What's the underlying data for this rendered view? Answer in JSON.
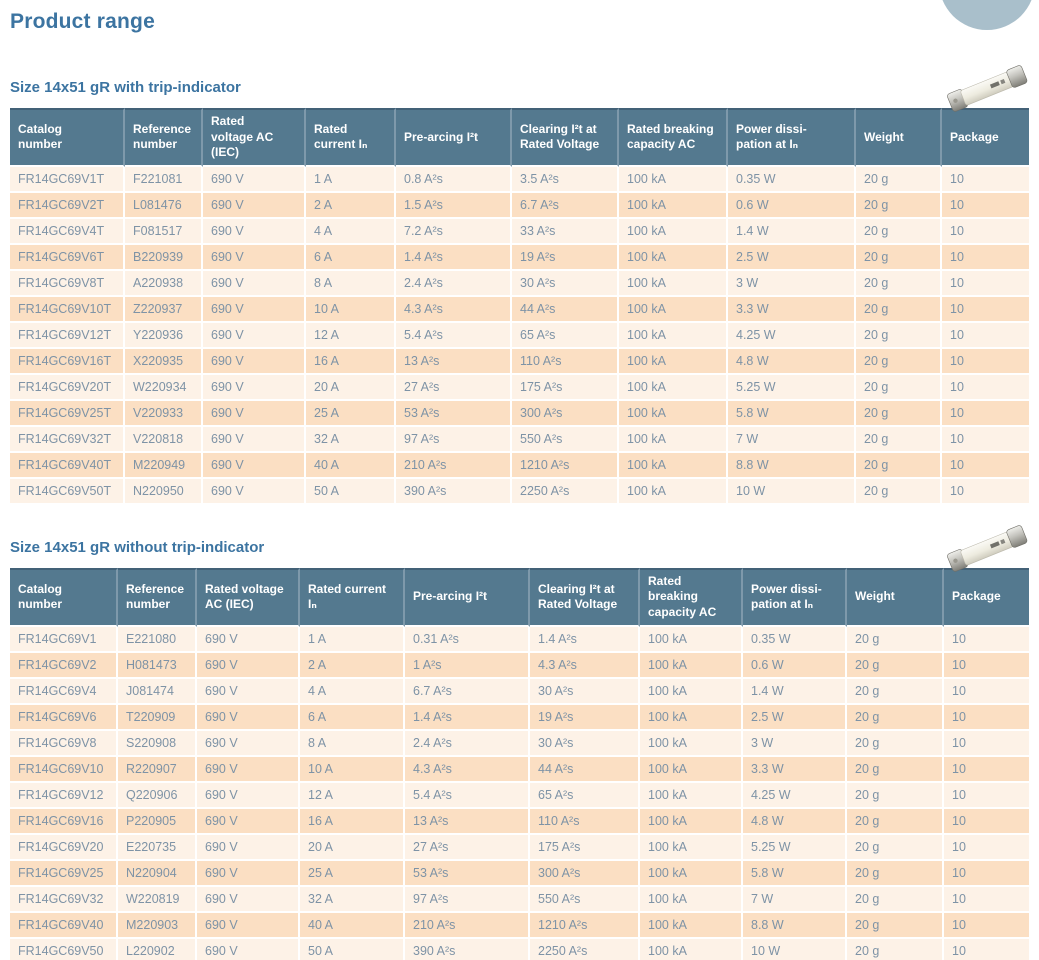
{
  "page": {
    "title": "Product range"
  },
  "colors": {
    "header_bg": "#54798f",
    "header_text": "#ffffff",
    "header_sep": "#7e99ab",
    "header_top": "#436177",
    "row_light": "#fdf2e7",
    "row_peach": "#fbdfc3",
    "cell_text": "#7e93a6",
    "title_blue": "#3c74a1",
    "circle": "#a9bfcb"
  },
  "images": {
    "fuse_photo": "ceramic-cartridge-fuse-photo",
    "corner_circle": "decorative-light-blue-circle"
  },
  "tables": [
    {
      "title": "Size 14x51 gR with trip-indicator",
      "headers": [
        "Catalog\nnumber",
        "Reference\nnumber",
        "Rated\nvoltage AC\n(IEC)",
        "Rated\ncurrent Iₙ",
        "Pre-arcing I²t",
        "Clearing I²t at\nRated Voltage",
        "Rated breaking\ncapacity AC",
        "Power dissi-\npation at Iₙ",
        "Weight",
        "Package"
      ],
      "rows": [
        [
          "FR14GC69V1T",
          "F221081",
          "690 V",
          "1 A",
          "0.8 A²s",
          "3.5 A²s",
          "100 kA",
          "0.35 W",
          "20 g",
          "10"
        ],
        [
          "FR14GC69V2T",
          "L081476",
          "690 V",
          "2 A",
          "1.5 A²s",
          "6.7 A²s",
          "100 kA",
          "0.6 W",
          "20 g",
          "10"
        ],
        [
          "FR14GC69V4T",
          "F081517",
          "690 V",
          "4 A",
          "7.2 A²s",
          "33 A²s",
          "100 kA",
          "1.4 W",
          "20 g",
          "10"
        ],
        [
          "FR14GC69V6T",
          "B220939",
          "690 V",
          "6 A",
          "1.4 A²s",
          "19 A²s",
          "100 kA",
          "2.5 W",
          "20 g",
          "10"
        ],
        [
          "FR14GC69V8T",
          "A220938",
          "690 V",
          "8 A",
          "2.4 A²s",
          "30 A²s",
          "100 kA",
          "3 W",
          "20 g",
          "10"
        ],
        [
          "FR14GC69V10T",
          "Z220937",
          "690 V",
          "10 A",
          "4.3 A²s",
          "44 A²s",
          "100 kA",
          "3.3 W",
          "20 g",
          "10"
        ],
        [
          "FR14GC69V12T",
          "Y220936",
          "690 V",
          "12 A",
          "5.4 A²s",
          "65 A²s",
          "100 kA",
          "4.25 W",
          "20 g",
          "10"
        ],
        [
          "FR14GC69V16T",
          "X220935",
          "690 V",
          "16 A",
          "13 A²s",
          "110 A²s",
          "100 kA",
          "4.8 W",
          "20 g",
          "10"
        ],
        [
          "FR14GC69V20T",
          "W220934",
          "690 V",
          "20 A",
          "27 A²s",
          "175 A²s",
          "100 kA",
          "5.25 W",
          "20 g",
          "10"
        ],
        [
          "FR14GC69V25T",
          "V220933",
          "690 V",
          "25 A",
          "53 A²s",
          "300 A²s",
          "100 kA",
          "5.8 W",
          "20 g",
          "10"
        ],
        [
          "FR14GC69V32T",
          "V220818",
          "690 V",
          "32 A",
          "97 A²s",
          "550 A²s",
          "100 kA",
          "7 W",
          "20 g",
          "10"
        ],
        [
          "FR14GC69V40T",
          "M220949",
          "690 V",
          "40 A",
          "210 A²s",
          "1210 A²s",
          "100 kA",
          "8.8 W",
          "20 g",
          "10"
        ],
        [
          "FR14GC69V50T",
          "N220950",
          "690 V",
          "50 A",
          "390 A²s",
          "2250 A²s",
          "100 kA",
          "10 W",
          "20 g",
          "10"
        ]
      ]
    },
    {
      "title": "Size 14x51 gR without trip-indicator",
      "headers": [
        "Catalog\nnumber",
        "Reference\nnumber",
        "Rated voltage\nAC (IEC)",
        "Rated current\nIₙ",
        "Pre-arcing I²t",
        "Clearing I²t at\nRated Voltage",
        "Rated breaking\ncapacity AC",
        "Power dissi-\npation at Iₙ",
        "Weight",
        "Package"
      ],
      "rows": [
        [
          "FR14GC69V1",
          "E221080",
          "690 V",
          "1 A",
          "0.31 A²s",
          "1.4 A²s",
          "100 kA",
          "0.35 W",
          "20 g",
          "10"
        ],
        [
          "FR14GC69V2",
          "H081473",
          "690 V",
          "2 A",
          "1 A²s",
          "4.3 A²s",
          "100 kA",
          "0.6 W",
          "20 g",
          "10"
        ],
        [
          "FR14GC69V4",
          "J081474",
          "690 V",
          "4 A",
          "6.7 A²s",
          "30 A²s",
          "100 kA",
          "1.4 W",
          "20 g",
          "10"
        ],
        [
          "FR14GC69V6",
          "T220909",
          "690 V",
          "6 A",
          "1.4 A²s",
          "19 A²s",
          "100 kA",
          "2.5 W",
          "20 g",
          "10"
        ],
        [
          "FR14GC69V8",
          "S220908",
          "690 V",
          "8 A",
          "2.4 A²s",
          "30 A²s",
          "100 kA",
          "3 W",
          "20 g",
          "10"
        ],
        [
          "FR14GC69V10",
          "R220907",
          "690 V",
          "10 A",
          "4.3 A²s",
          "44 A²s",
          "100 kA",
          "3.3 W",
          "20 g",
          "10"
        ],
        [
          "FR14GC69V12",
          "Q220906",
          "690 V",
          "12 A",
          "5.4 A²s",
          "65 A²s",
          "100 kA",
          "4.25 W",
          "20 g",
          "10"
        ],
        [
          "FR14GC69V16",
          "P220905",
          "690 V",
          "16 A",
          "13 A²s",
          "110 A²s",
          "100 kA",
          "4.8 W",
          "20 g",
          "10"
        ],
        [
          "FR14GC69V20",
          "E220735",
          "690 V",
          "20 A",
          "27 A²s",
          "175 A²s",
          "100 kA",
          "5.25 W",
          "20 g",
          "10"
        ],
        [
          "FR14GC69V25",
          "N220904",
          "690 V",
          "25 A",
          "53 A²s",
          "300 A²s",
          "100 kA",
          "5.8 W",
          "20 g",
          "10"
        ],
        [
          "FR14GC69V32",
          "W220819",
          "690 V",
          "32 A",
          "97 A²s",
          "550 A²s",
          "100 kA",
          "7 W",
          "20 g",
          "10"
        ],
        [
          "FR14GC69V40",
          "M220903",
          "690 V",
          "40 A",
          "210 A²s",
          "1210 A²s",
          "100 kA",
          "8.8 W",
          "20 g",
          "10"
        ],
        [
          "FR14GC69V50",
          "L220902",
          "690 V",
          "50 A",
          "390 A²s",
          "2250 A²s",
          "100 kA",
          "10 W",
          "20 g",
          "10"
        ]
      ]
    }
  ]
}
